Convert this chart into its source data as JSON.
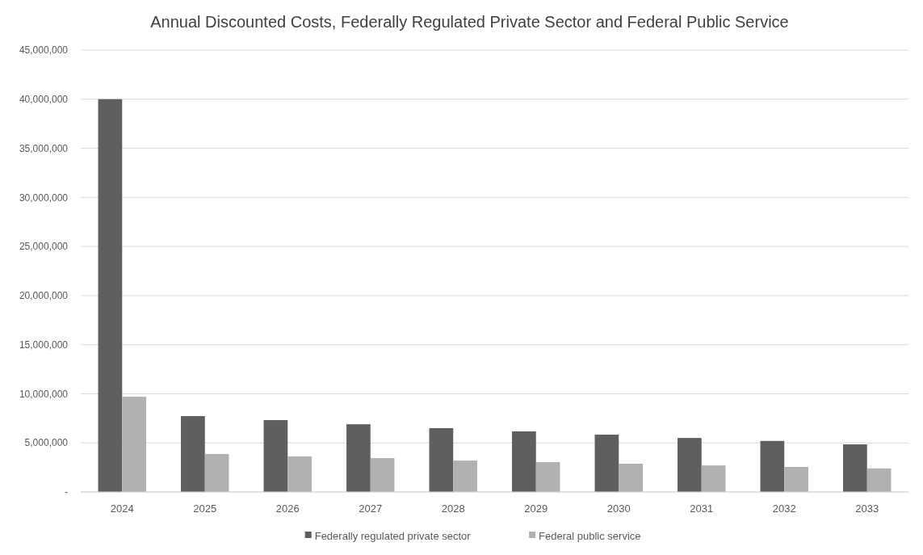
{
  "chart_data": {
    "type": "bar",
    "title": "Annual Discounted Costs, Federally Regulated Private Sector and Federal Public Service",
    "categories": [
      "2024",
      "2025",
      "2026",
      "2027",
      "2028",
      "2029",
      "2030",
      "2031",
      "2032",
      "2033"
    ],
    "series": [
      {
        "name": "Federally regulated private sector",
        "color": "#5f5f5f",
        "values": [
          40000000,
          7730000,
          7320000,
          6900000,
          6500000,
          6170000,
          5840000,
          5500000,
          5200000,
          4850000
        ]
      },
      {
        "name": "Federal public service",
        "color": "#b1b1b1",
        "values": [
          9700000,
          3870000,
          3620000,
          3450000,
          3200000,
          3040000,
          2880000,
          2700000,
          2550000,
          2400000
        ]
      }
    ],
    "ylim": [
      0,
      45000000
    ],
    "yticks": [
      {
        "value": 0,
        "label": "-"
      },
      {
        "value": 5000000,
        "label": "5,000,000"
      },
      {
        "value": 10000000,
        "label": "10,000,000"
      },
      {
        "value": 15000000,
        "label": "15,000,000"
      },
      {
        "value": 20000000,
        "label": "20,000,000"
      },
      {
        "value": 25000000,
        "label": "25,000,000"
      },
      {
        "value": 30000000,
        "label": "30,000,000"
      },
      {
        "value": 35000000,
        "label": "35,000,000"
      },
      {
        "value": 40000000,
        "label": "40,000,000"
      },
      {
        "value": 45000000,
        "label": "45,000,000"
      }
    ],
    "grid": "y",
    "legend": "bottom"
  }
}
